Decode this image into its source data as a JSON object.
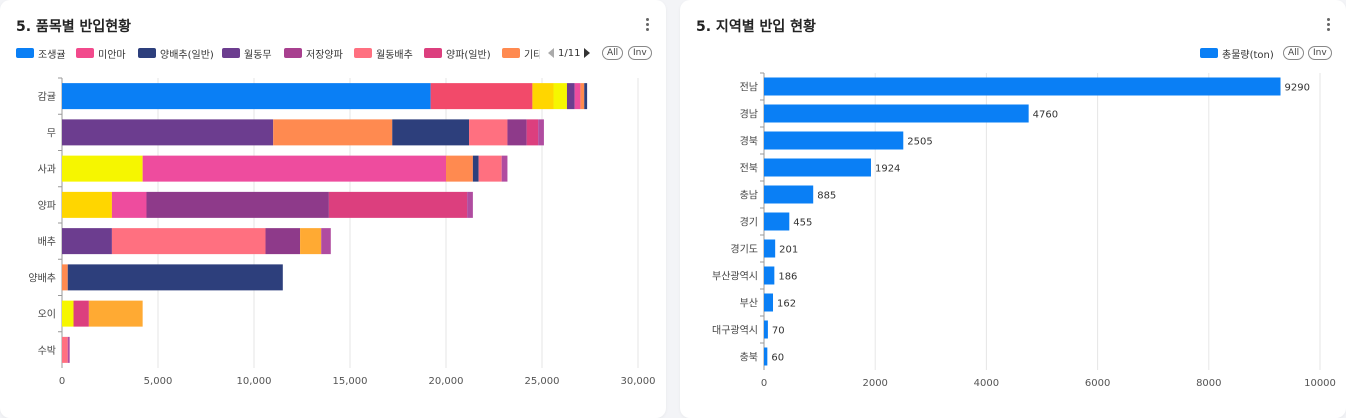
{
  "left": {
    "title": "5. 품목별 반입현황",
    "legend_page": "1/11",
    "all_label": "All",
    "inv_label": "Inv",
    "chart_data": {
      "type": "bar",
      "orientation": "horizontal",
      "stacked": true,
      "categories": [
        "감귤",
        "무",
        "사과",
        "양파",
        "배추",
        "양배추",
        "오이",
        "수박"
      ],
      "xlim": [
        0,
        30000
      ],
      "x_ticks": [
        "0",
        "5,000",
        "10,000",
        "15,000",
        "20,000",
        "25,000",
        "30,000"
      ],
      "legend_visible": [
        "조생귤",
        "미안마",
        "양배추(일반)",
        "월동무",
        "저장양파",
        "월동배추",
        "양파(일반)",
        "기타"
      ],
      "series": [
        {
          "color": "#0a7ff5",
          "values": [
            19200,
            0,
            0,
            0,
            0,
            0,
            0,
            0
          ]
        },
        {
          "color": "#f24a6a",
          "values": [
            5300,
            0,
            0,
            0,
            0,
            0,
            0,
            0
          ]
        },
        {
          "color": "#ffd600",
          "values": [
            1100,
            0,
            0,
            2600,
            0,
            0,
            0,
            0
          ]
        },
        {
          "color": "#f6f600",
          "values": [
            700,
            0,
            4200,
            0,
            0,
            0,
            600,
            0
          ]
        },
        {
          "color": "#6c3d8f",
          "values": [
            400,
            11000,
            0,
            0,
            2600,
            0,
            0,
            0
          ]
        },
        {
          "color": "#ee4c9e",
          "values": [
            300,
            0,
            15800,
            1800,
            0,
            0,
            0,
            0
          ]
        },
        {
          "color": "#ff8a50",
          "values": [
            200,
            6200,
            1400,
            0,
            0,
            300,
            0,
            0
          ]
        },
        {
          "color": "#2d3f7c",
          "values": [
            150,
            4000,
            300,
            0,
            0,
            11200,
            0,
            0
          ]
        },
        {
          "color": "#ff7080",
          "values": [
            0,
            2000,
            1200,
            0,
            8000,
            0,
            0,
            300
          ]
        },
        {
          "color": "#8e3a8a",
          "values": [
            0,
            1000,
            0,
            9500,
            1800,
            0,
            0,
            0
          ]
        },
        {
          "color": "#dc3f7e",
          "values": [
            0,
            600,
            0,
            7200,
            0,
            0,
            800,
            0
          ]
        },
        {
          "color": "#ffaa33",
          "values": [
            0,
            0,
            0,
            0,
            1100,
            0,
            2800,
            0
          ]
        },
        {
          "color": "#b04ca0",
          "values": [
            0,
            300,
            300,
            300,
            500,
            0,
            0,
            100
          ]
        }
      ]
    }
  },
  "right": {
    "title": "5. 지역별 반입 현황",
    "all_label": "All",
    "inv_label": "Inv",
    "chart_data": {
      "type": "bar",
      "orientation": "horizontal",
      "categories": [
        "전남",
        "경남",
        "경북",
        "전북",
        "충남",
        "경기",
        "경기도",
        "부산광역시",
        "부산",
        "대구광역시",
        "충북"
      ],
      "series": [
        {
          "name": "총물량(ton)",
          "color": "#0a7ff5",
          "values": [
            9290,
            4760,
            2505,
            1924,
            885,
            455,
            201,
            186,
            162,
            70,
            60
          ]
        }
      ],
      "xlim": [
        0,
        10000
      ],
      "x_ticks": [
        "0",
        "2000",
        "4000",
        "6000",
        "8000",
        "10000"
      ]
    }
  },
  "colors": {
    "legend": [
      "#0a7ff5",
      "#f24a8c",
      "#2d3f7c",
      "#6c3d8f",
      "#a8408f",
      "#ff7080",
      "#dc3f7e",
      "#ff8a50"
    ]
  }
}
